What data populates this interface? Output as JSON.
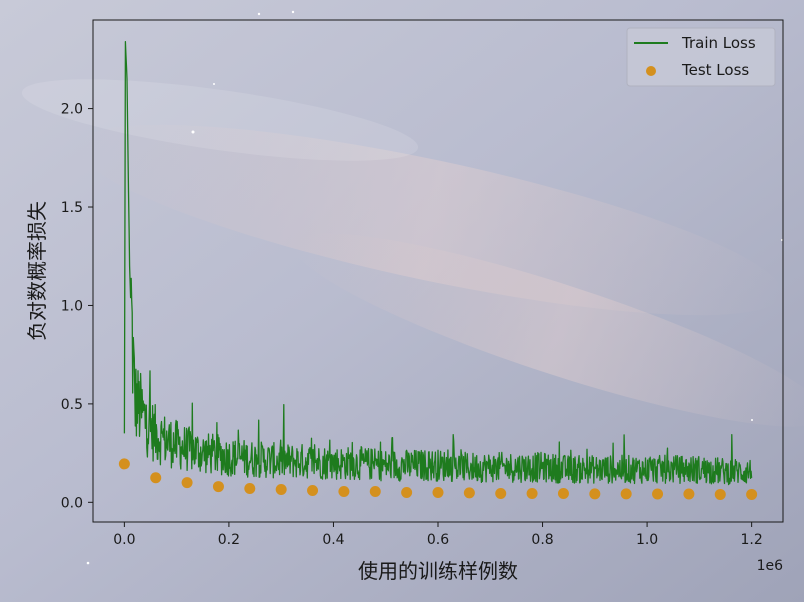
{
  "chart_data": {
    "type": "line",
    "title": "",
    "xlabel": "使用的训练样例数",
    "ylabel": "负对数概率损失",
    "x_offset_label": "1e6",
    "xlim": [
      -60000,
      1260000
    ],
    "ylim": [
      -0.1,
      2.45
    ],
    "x_ticks": [
      0,
      200000,
      400000,
      600000,
      800000,
      1000000,
      1200000
    ],
    "x_tick_labels": [
      "0.0",
      "0.2",
      "0.4",
      "0.6",
      "0.8",
      "1.0",
      "1.2"
    ],
    "y_ticks": [
      0.0,
      0.5,
      1.0,
      1.5,
      2.0
    ],
    "y_tick_labels": [
      "0.0",
      "0.5",
      "1.0",
      "1.5",
      "2.0"
    ],
    "grid": false,
    "legend_position": "top-right",
    "series": [
      {
        "name": "Train Loss",
        "kind": "line",
        "color": "#1e7b1e",
        "x": [
          0,
          2000,
          5000,
          10000,
          15000,
          20000,
          30000,
          40000,
          50000,
          60000,
          80000,
          100000,
          120000,
          150000,
          180000,
          200000,
          250000,
          300000,
          350000,
          400000,
          450000,
          500000,
          550000,
          600000,
          650000,
          700000,
          750000,
          800000,
          850000,
          900000,
          950000,
          1000000,
          1050000,
          1100000,
          1150000,
          1200000
        ],
        "y": [
          0.35,
          2.34,
          2.15,
          1.2,
          0.8,
          0.5,
          0.45,
          0.4,
          0.36,
          0.33,
          0.3,
          0.28,
          0.26,
          0.24,
          0.23,
          0.22,
          0.21,
          0.2,
          0.2,
          0.19,
          0.19,
          0.18,
          0.18,
          0.18,
          0.17,
          0.17,
          0.17,
          0.17,
          0.16,
          0.16,
          0.16,
          0.16,
          0.16,
          0.16,
          0.15,
          0.15
        ]
      },
      {
        "name": "Test Loss",
        "kind": "scatter",
        "color": "#d4901e",
        "x": [
          0,
          60000,
          120000,
          180000,
          240000,
          300000,
          360000,
          420000,
          480000,
          540000,
          600000,
          660000,
          720000,
          780000,
          840000,
          900000,
          960000,
          1020000,
          1080000,
          1140000,
          1200000
        ],
        "y": [
          0.195,
          0.125,
          0.1,
          0.08,
          0.07,
          0.065,
          0.06,
          0.055,
          0.055,
          0.05,
          0.05,
          0.048,
          0.045,
          0.045,
          0.045,
          0.043,
          0.043,
          0.042,
          0.042,
          0.04,
          0.04
        ]
      }
    ]
  }
}
